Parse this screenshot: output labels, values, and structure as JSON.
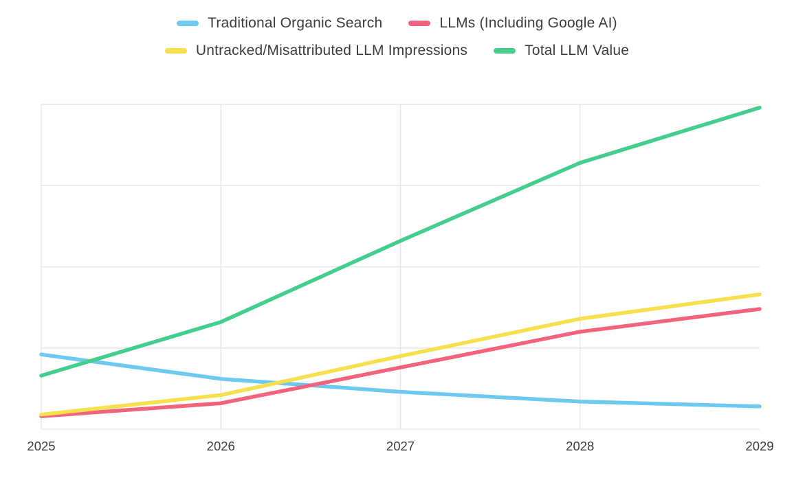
{
  "colors": {
    "background": "#ffffff",
    "grid": "#e7e7e7",
    "text": "#3d3d3d"
  },
  "chart_data": {
    "type": "line",
    "x": [
      "2025",
      "2026",
      "2027",
      "2028",
      "2029"
    ],
    "series": [
      {
        "name": "Traditional Organic Search",
        "color": "#6ec9ee",
        "values": [
          23,
          15.5,
          11.5,
          8.5,
          7
        ]
      },
      {
        "name": "LLMs (Including Google AI)",
        "color": "#f2647e",
        "values": [
          4,
          8,
          19,
          30,
          37
        ]
      },
      {
        "name": "Untracked/Misattributed LLM Impressions",
        "color": "#f6e04d",
        "values": [
          4.5,
          10.5,
          22.5,
          34,
          41.5
        ]
      },
      {
        "name": "Total LLM Value",
        "color": "#43ce8e",
        "values": [
          16.5,
          33,
          58,
          82,
          99
        ]
      }
    ],
    "ylim": [
      0,
      100
    ],
    "grid": true,
    "legend_position": "top",
    "title": "",
    "xlabel": "",
    "ylabel": ""
  }
}
